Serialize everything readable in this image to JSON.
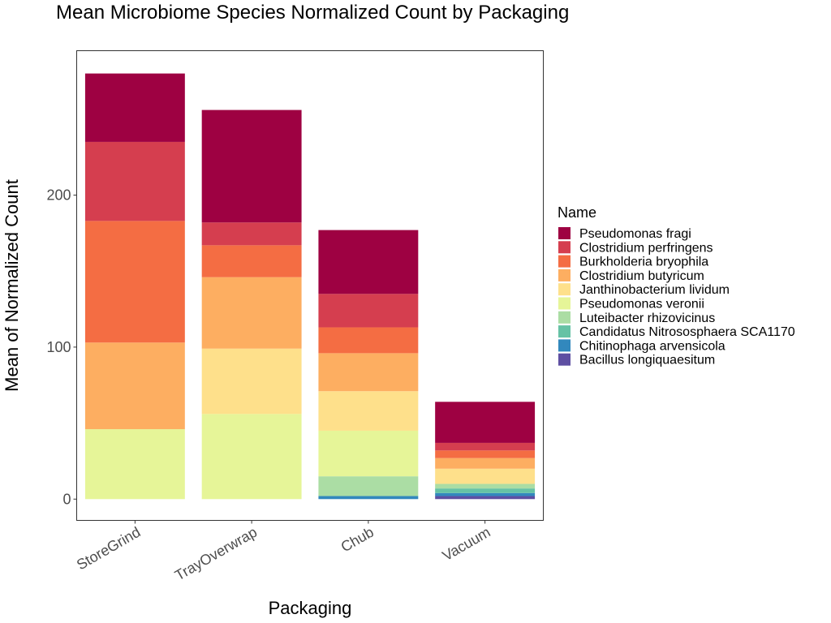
{
  "chart_data": {
    "type": "bar",
    "stacked": true,
    "title": "Mean Microbiome Species Normalized Count by Packaging",
    "xlabel": "Packaging",
    "ylabel": "Mean of Normalized Count",
    "ylim": [
      -14,
      295
    ],
    "yticks": [
      0,
      100,
      200
    ],
    "categories": [
      "StoreGrind",
      "TrayOverwrap",
      "Chub",
      "Vacuum"
    ],
    "legend": {
      "title": "Name",
      "position": "right"
    },
    "grid": false,
    "series": [
      {
        "name": "Bacillus longiquaesitum",
        "color": "#5e4fa2",
        "values": [
          0,
          0,
          0,
          2
        ]
      },
      {
        "name": "Chitinophaga arvensicola",
        "color": "#3288bd",
        "values": [
          0,
          0,
          2,
          2
        ]
      },
      {
        "name": "Candidatus Nitrososphaera SCA1170",
        "color": "#66c2a5",
        "values": [
          0,
          0,
          0,
          3
        ]
      },
      {
        "name": "Luteibacter rhizovicinus",
        "color": "#abdda4",
        "values": [
          0,
          0,
          13,
          3
        ]
      },
      {
        "name": "Pseudomonas veronii",
        "color": "#e6f598",
        "values": [
          46,
          56,
          30,
          0
        ]
      },
      {
        "name": "Janthinobacterium lividum",
        "color": "#fee08b",
        "values": [
          0,
          43,
          26,
          10
        ]
      },
      {
        "name": "Clostridium butyricum",
        "color": "#fdae61",
        "values": [
          57,
          47,
          25,
          7
        ]
      },
      {
        "name": "Burkholderia bryophila",
        "color": "#f46d43",
        "values": [
          80,
          21,
          17,
          5
        ]
      },
      {
        "name": "Clostridium perfringens",
        "color": "#d53e4f",
        "values": [
          52,
          15,
          22,
          5
        ]
      },
      {
        "name": "Pseudomonas fragi",
        "color": "#9e0142",
        "values": [
          45,
          74,
          42,
          27
        ]
      }
    ]
  }
}
